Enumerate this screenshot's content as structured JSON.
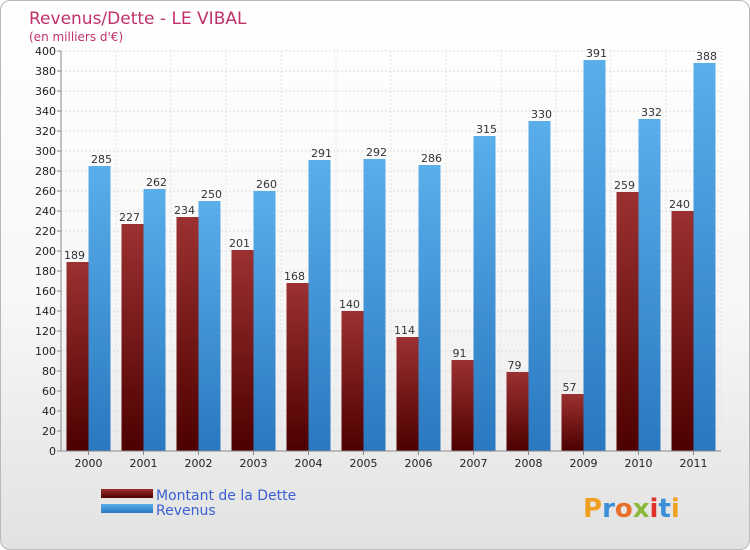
{
  "chart_data": {
    "type": "bar",
    "title": "Revenus/Dette - LE VIBAL",
    "subtitle": "(en milliers d'€)",
    "categories": [
      "2000",
      "2001",
      "2002",
      "2003",
      "2004",
      "2005",
      "2006",
      "2007",
      "2008",
      "2009",
      "2010",
      "2011"
    ],
    "series": [
      {
        "name": "Montant de la Dette",
        "values": [
          189,
          227,
          234,
          201,
          168,
          140,
          114,
          91,
          79,
          57,
          259,
          240
        ],
        "color": "#8b1a1a"
      },
      {
        "name": "Revenus",
        "values": [
          285,
          262,
          250,
          260,
          291,
          292,
          286,
          315,
          330,
          391,
          332,
          388
        ],
        "color": "#3f9be0"
      }
    ],
    "ylim": [
      0,
      400
    ],
    "ytick_step": 20,
    "grid": true,
    "legend_position": "bottom-left"
  },
  "logo": {
    "text": "Proxiti"
  }
}
